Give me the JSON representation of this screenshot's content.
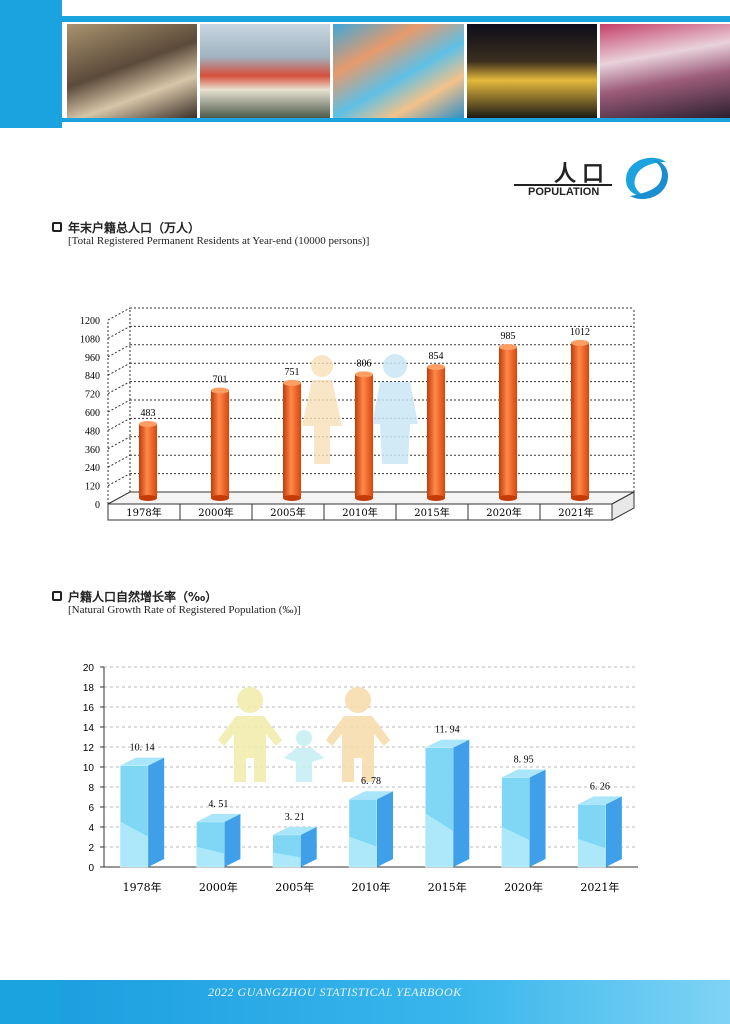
{
  "header": {
    "photos": [
      {
        "name": "shopping-street-photo"
      },
      {
        "name": "bus-photo"
      },
      {
        "name": "water-park-photo"
      },
      {
        "name": "night-street-photo"
      },
      {
        "name": "crowd-photo"
      }
    ],
    "section_cn": "人口",
    "section_en": "POPULATION",
    "logo_icon": "guangzhou-logo-icon"
  },
  "chart1": {
    "title_cn": "年末户籍总人口（万人）",
    "title_en": "[Total Registered Permanent Residents at Year-end (10000 persons)]"
  },
  "chart2": {
    "title_cn": "户籍人口自然增长率（‰）",
    "title_en": "[Natural Growth Rate of Registered Population (‰)]"
  },
  "footer": {
    "text": "2022 GUANGZHOU STATISTICAL YEARBOOK"
  },
  "chart_data": [
    {
      "type": "bar",
      "title": "年末户籍总人口（万人）",
      "categories": [
        "1978年",
        "2000年",
        "2005年",
        "2010年",
        "2015年",
        "2020年",
        "2021年"
      ],
      "values": [
        483,
        701,
        751,
        806,
        854,
        985,
        1012
      ],
      "labels": [
        "483",
        "701",
        "751",
        "806",
        "854",
        "985",
        "1012"
      ],
      "yticks": [
        "0",
        "120",
        "240",
        "360",
        "480",
        "600",
        "720",
        "840",
        "960",
        "1080",
        "1200"
      ],
      "ylim": [
        0,
        1200
      ],
      "grid": true,
      "bar_color": "#f05a1e"
    },
    {
      "type": "bar",
      "title": "户籍人口自然增长率（‰）",
      "categories": [
        "1978年",
        "2000年",
        "2005年",
        "2010年",
        "2015年",
        "2020年",
        "2021年"
      ],
      "values": [
        10.14,
        4.51,
        3.21,
        6.78,
        11.94,
        8.95,
        6.26
      ],
      "labels": [
        "10. 14",
        "4. 51",
        "3. 21",
        "6. 78",
        "11. 94",
        "8. 95",
        "6. 26"
      ],
      "yticks": [
        "0",
        "2",
        "4",
        "6",
        "8",
        "10",
        "12",
        "14",
        "16",
        "18",
        "20"
      ],
      "ylim": [
        0,
        20
      ],
      "grid": true,
      "bar_color": "#5cc8f0"
    }
  ]
}
